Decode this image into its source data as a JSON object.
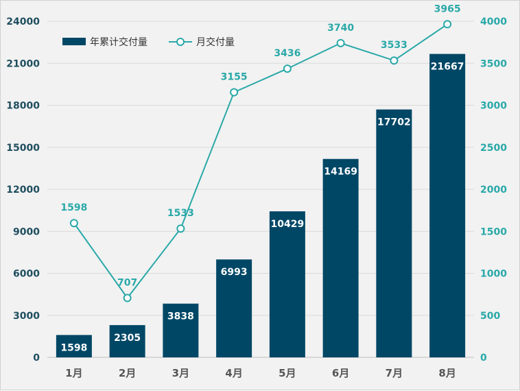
{
  "chart_data": {
    "type": "bar",
    "categories": [
      "1月",
      "2月",
      "3月",
      "4月",
      "5月",
      "6月",
      "7月",
      "8月"
    ],
    "series": [
      {
        "name": "年累计交付量",
        "type": "bar",
        "axis": "left",
        "values": [
          1598,
          2305,
          3838,
          6993,
          10429,
          14169,
          17702,
          21667
        ]
      },
      {
        "name": "月交付量",
        "type": "line",
        "axis": "right",
        "values": [
          1598,
          707,
          1533,
          3155,
          3436,
          3740,
          3533,
          3965
        ]
      }
    ],
    "ylim_left": [
      0,
      24000
    ],
    "yticks_left": [
      0,
      3000,
      6000,
      9000,
      12000,
      15000,
      18000,
      21000,
      24000
    ],
    "ylim_right": [
      0,
      4000
    ],
    "yticks_right": [
      0,
      500,
      1000,
      1500,
      2000,
      2500,
      3000,
      3500,
      4000
    ],
    "legend_position": "top-left",
    "grid": true,
    "colors": {
      "bar": "#004766",
      "line": "#2aa8a8",
      "grid": "#d9d9d9",
      "background": "#f2f2f2"
    }
  }
}
